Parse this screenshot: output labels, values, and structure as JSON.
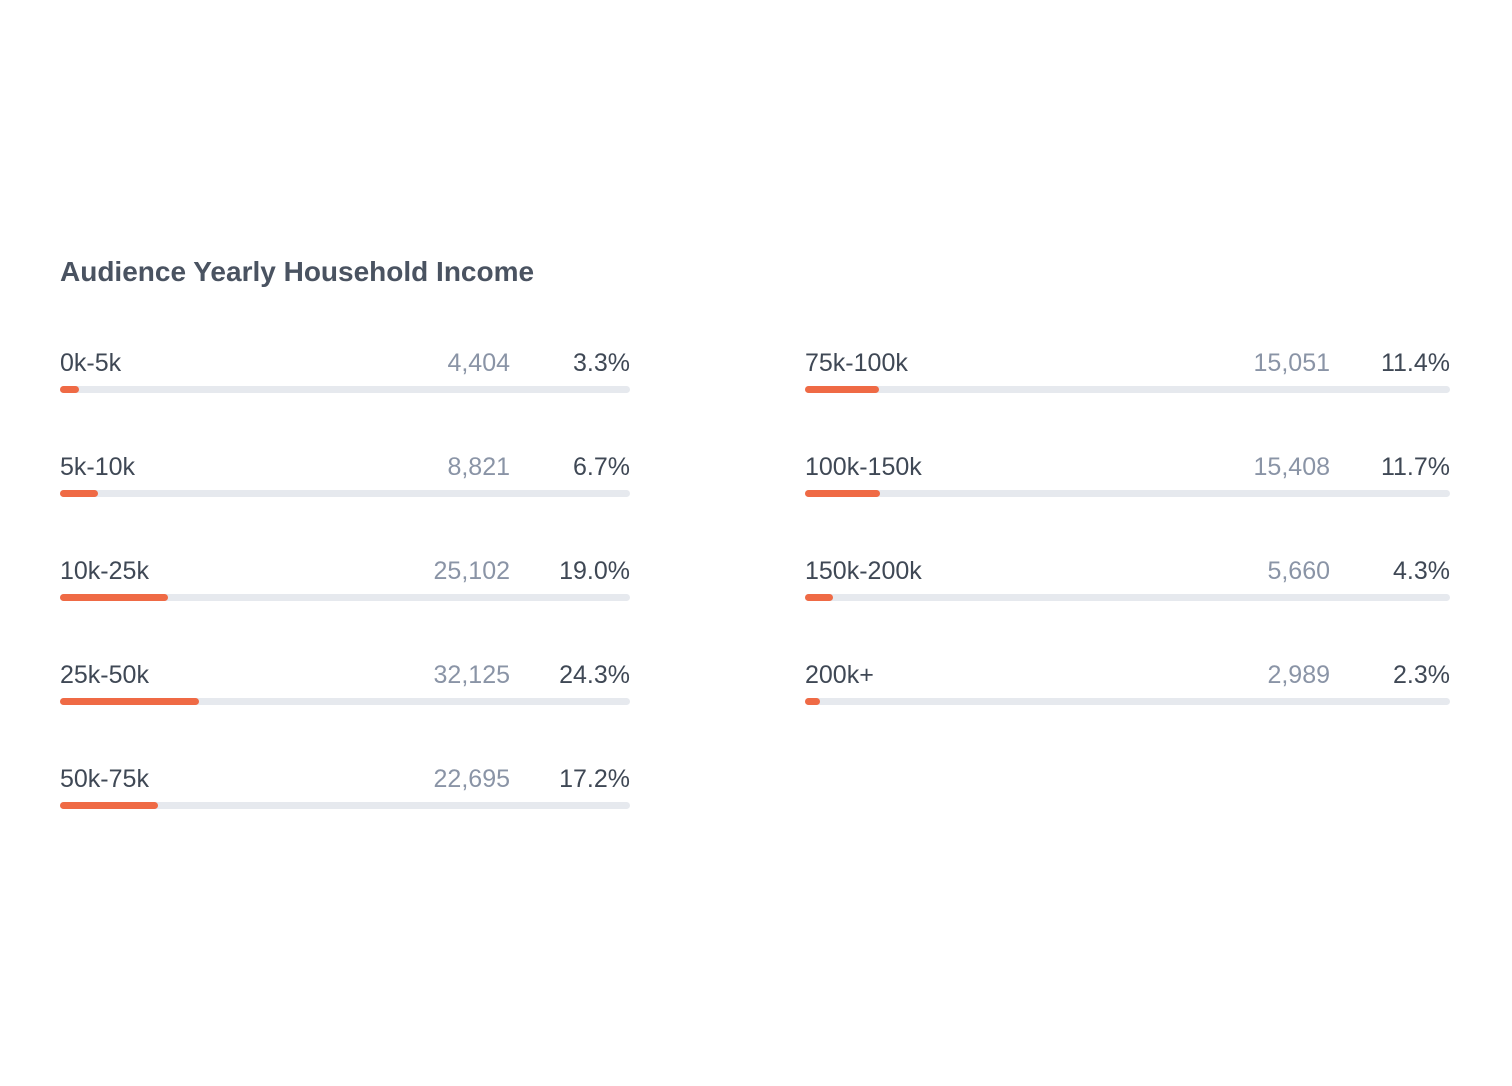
{
  "title": "Audience Yearly Household Income",
  "accent_color": "#ef6a45",
  "track_color": "#e6e9ee",
  "columns": [
    {
      "rows": [
        {
          "label": "0k-5k",
          "count": "4,404",
          "percent": "3.3%",
          "share": 0.033
        },
        {
          "label": "5k-10k",
          "count": "8,821",
          "percent": "6.7%",
          "share": 0.067
        },
        {
          "label": "10k-25k",
          "count": "25,102",
          "percent": "19.0%",
          "share": 0.19
        },
        {
          "label": "25k-50k",
          "count": "32,125",
          "percent": "24.3%",
          "share": 0.243
        },
        {
          "label": "50k-75k",
          "count": "22,695",
          "percent": "17.2%",
          "share": 0.172
        }
      ]
    },
    {
      "rows": [
        {
          "label": "75k-100k",
          "count": "15,051",
          "percent": "11.4%",
          "share": 0.114
        },
        {
          "label": "100k-150k",
          "count": "15,408",
          "percent": "11.7%",
          "share": 0.117
        },
        {
          "label": "150k-200k",
          "count": "5,660",
          "percent": "4.3%",
          "share": 0.043
        },
        {
          "label": "200k+",
          "count": "2,989",
          "percent": "2.3%",
          "share": 0.023
        }
      ]
    }
  ]
}
